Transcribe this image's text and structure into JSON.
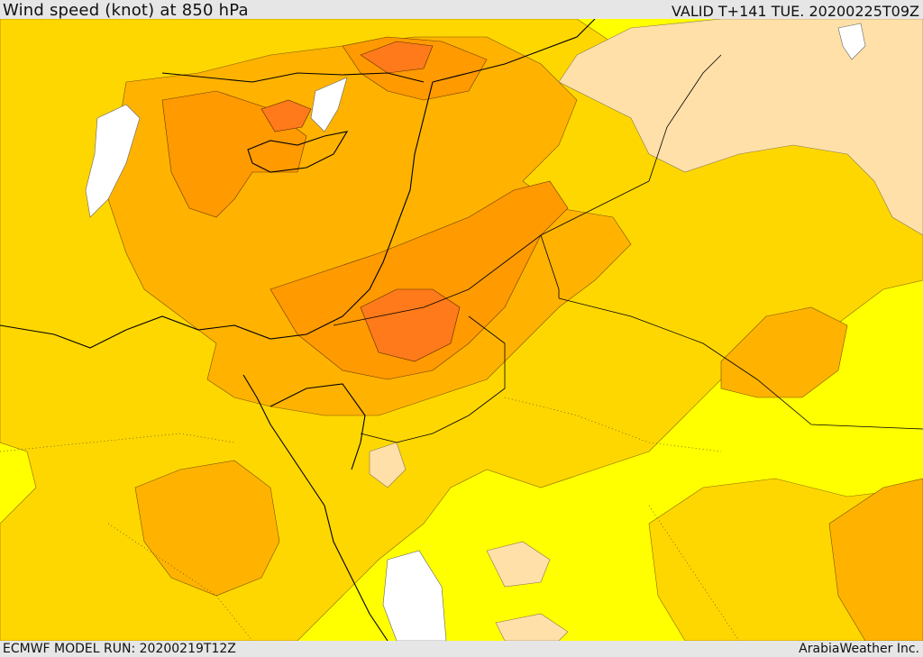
{
  "header": {
    "title": "Wind speed (knot) at 850 hPa",
    "valid_time": "VALID T+141 TUE. 20200225T09Z"
  },
  "footer": {
    "model_run": "ECMWF MODEL RUN: 20200219T12Z",
    "credit": "ArabiaWeather Inc."
  },
  "palette": {
    "calm": "#ffffff",
    "light": "#ffff00",
    "moderate": "#ffd700",
    "strong": "#ffb300",
    "very_strong": "#ff9a00",
    "gale": "#ff7a1a",
    "land_high": "#ffe0a8",
    "coast": "#000000"
  }
}
